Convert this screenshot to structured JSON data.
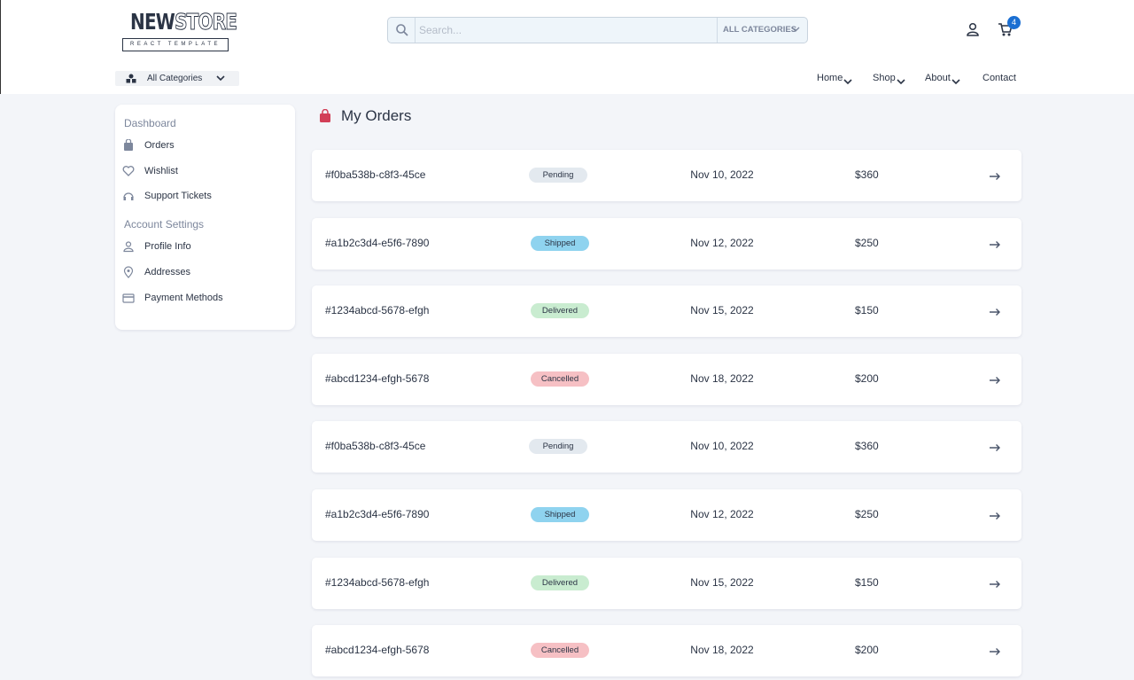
{
  "header": {
    "logo_word_1": "NEW",
    "logo_word_2": "STORE",
    "logo_subtitle": "REACT TEMPLATE",
    "search_placeholder": "Search...",
    "search_category": "ALL CATEGORIES",
    "cart_count": 4,
    "categories_button": "All Categories",
    "nav": [
      "Home",
      "Shop",
      "About",
      "Contact"
    ]
  },
  "sidebar": {
    "sections": [
      {
        "title": "Dashboard",
        "items": [
          "Orders",
          "Wishlist",
          "Support Tickets"
        ]
      },
      {
        "title": "Account Settings",
        "items": [
          "Profile Info",
          "Addresses",
          "Payment Methods"
        ]
      }
    ]
  },
  "page_title": "My Orders",
  "orders": [
    {
      "id": "#f0ba538b-c8f3-45ce",
      "status": "Pending",
      "status_color": "#e3e9ef",
      "date": "Nov 10, 2022",
      "total": "$360"
    },
    {
      "id": "#a1b2c3d4-e5f6-7890",
      "status": "Shipped",
      "status_color": "#8fd3ef",
      "date": "Nov 12, 2022",
      "total": "$250"
    },
    {
      "id": "#1234abcd-5678-efgh",
      "status": "Delivered",
      "status_color": "#c9ecd0",
      "date": "Nov 15, 2022",
      "total": "$150"
    },
    {
      "id": "#abcd1234-efgh-5678",
      "status": "Cancelled",
      "status_color": "#f6c0c4",
      "date": "Nov 18, 2022",
      "total": "$200"
    },
    {
      "id": "#f0ba538b-c8f3-45ce",
      "status": "Pending",
      "status_color": "#e3e9ef",
      "date": "Nov 10, 2022",
      "total": "$360"
    },
    {
      "id": "#a1b2c3d4-e5f6-7890",
      "status": "Shipped",
      "status_color": "#8fd3ef",
      "date": "Nov 12, 2022",
      "total": "$250"
    },
    {
      "id": "#1234abcd-5678-efgh",
      "status": "Delivered",
      "status_color": "#c9ecd0",
      "date": "Nov 15, 2022",
      "total": "$150"
    },
    {
      "id": "#abcd1234-efgh-5678",
      "status": "Cancelled",
      "status_color": "#f6c0c4",
      "date": "Nov 18, 2022",
      "total": "$200"
    }
  ]
}
